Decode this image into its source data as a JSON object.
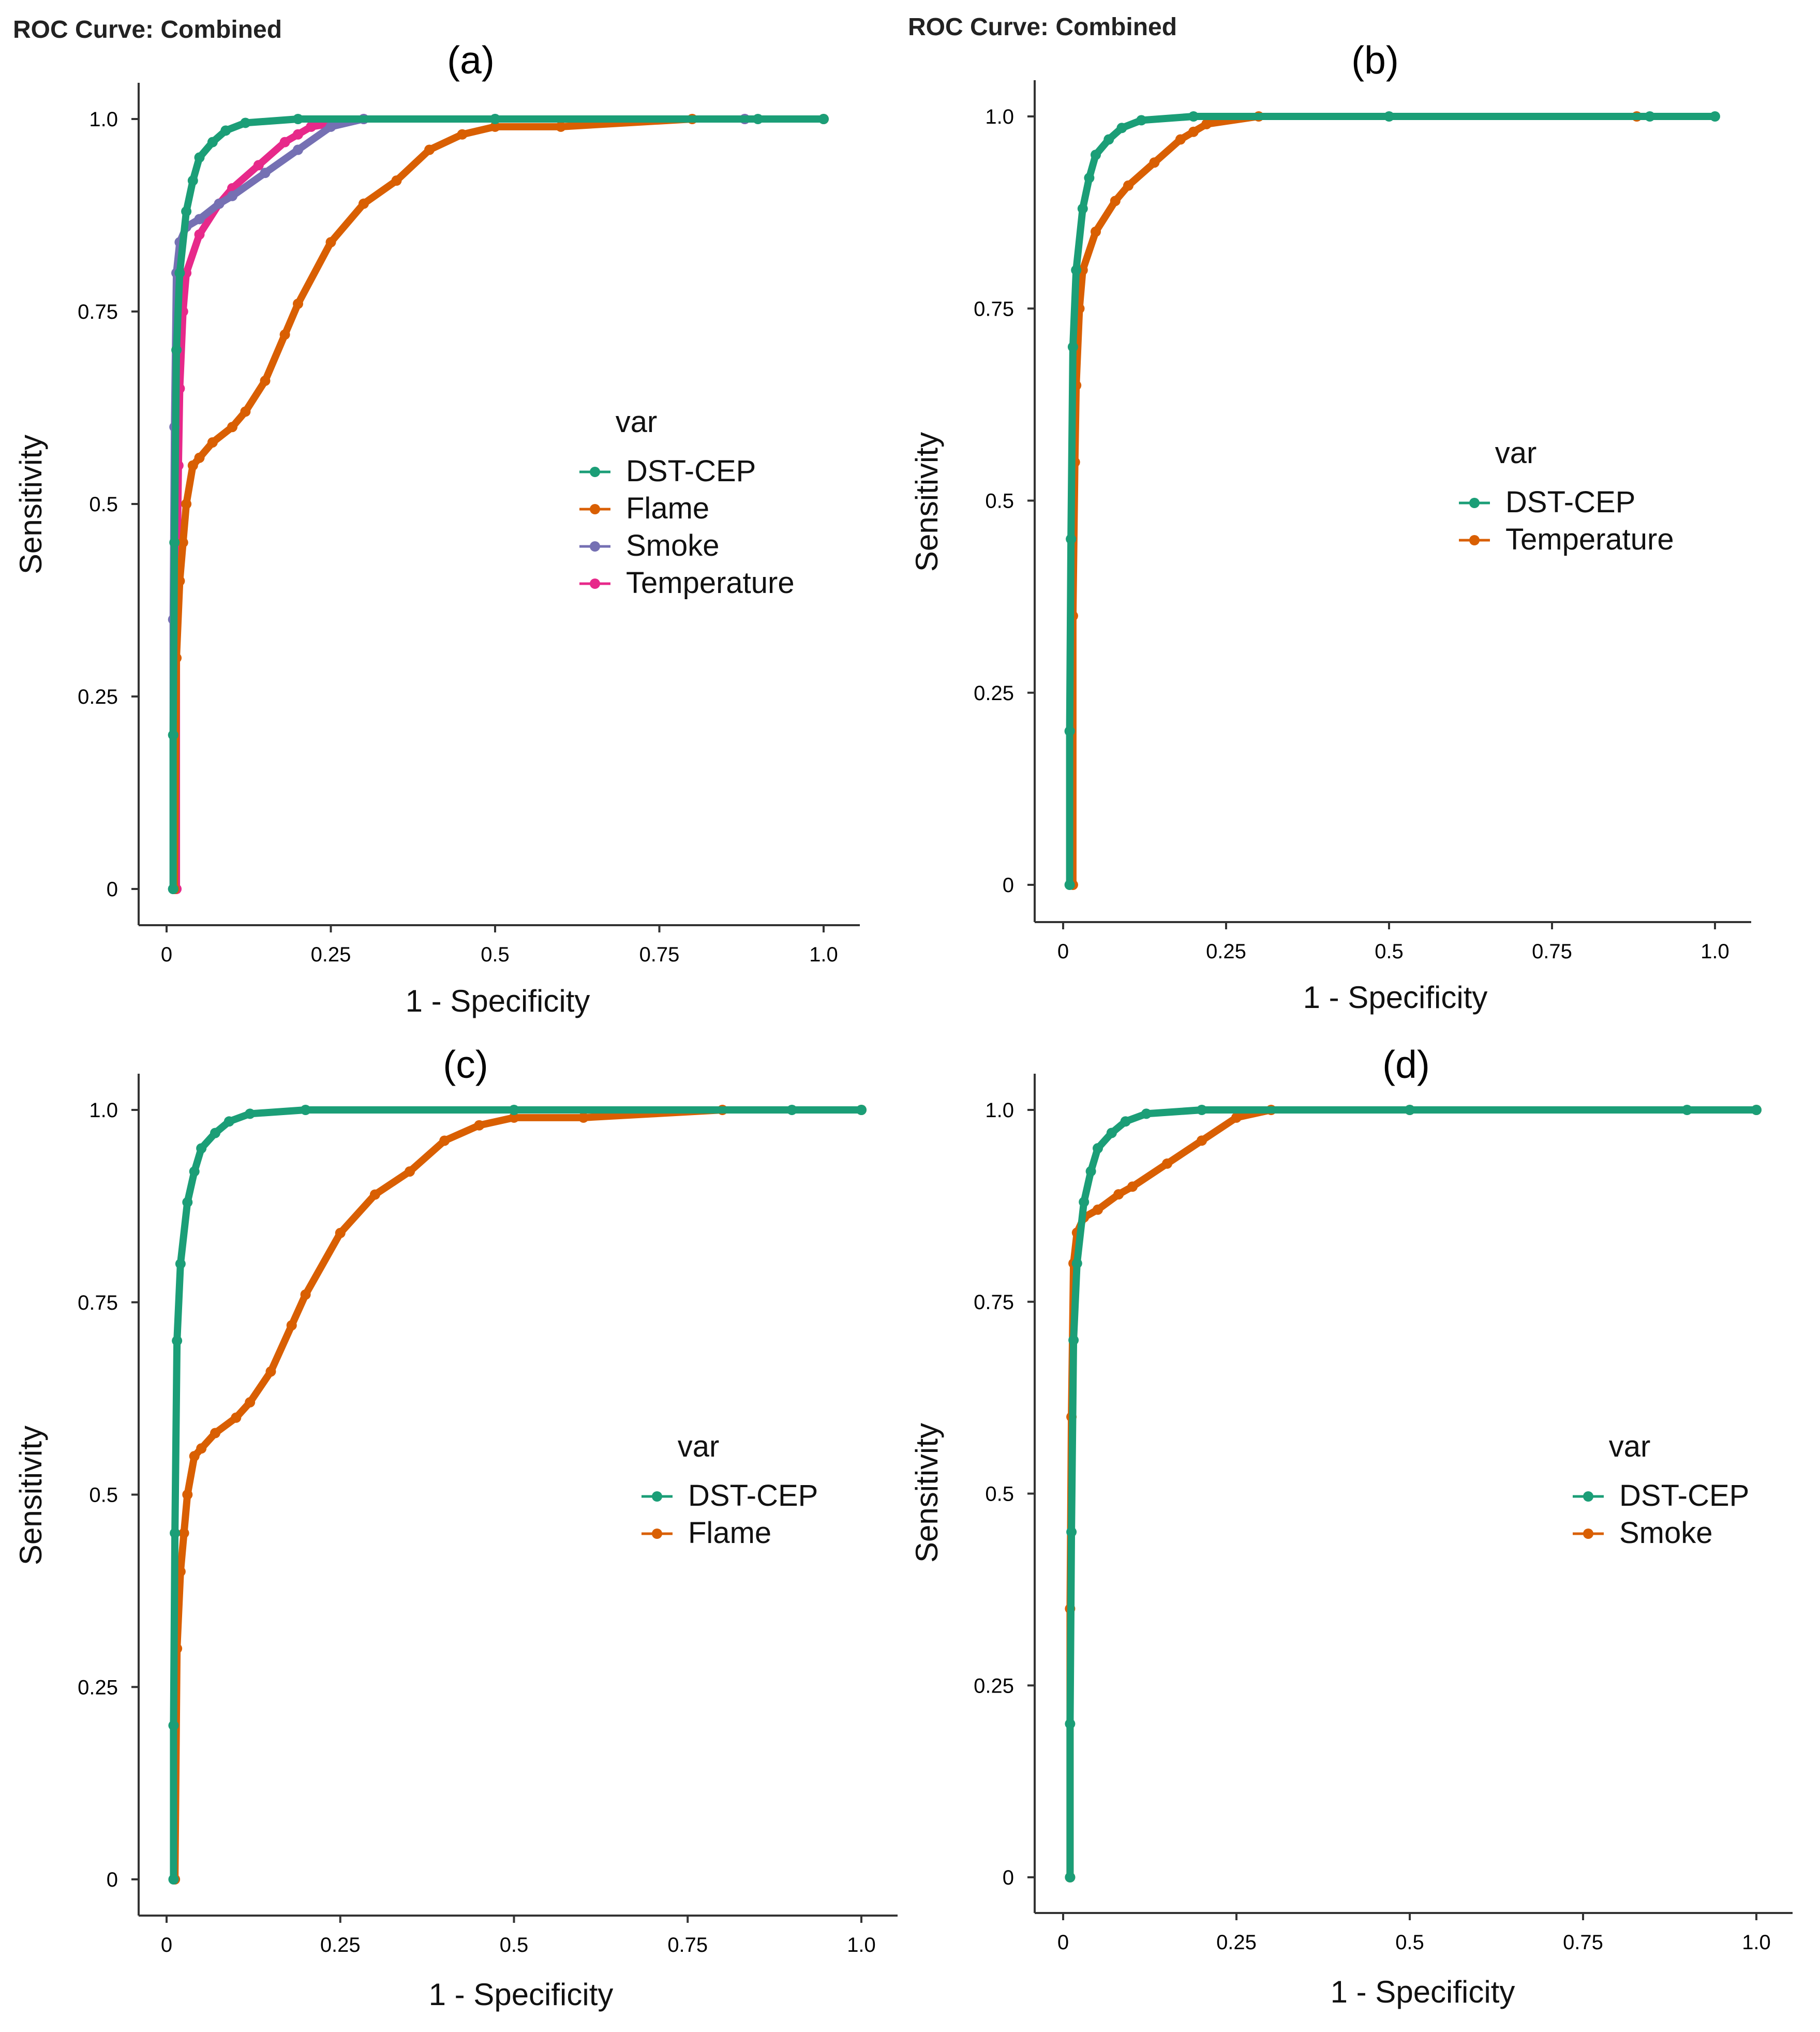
{
  "header": {
    "title_a": "ROC Curve: Combined",
    "title_b": "ROC Curve: Combined"
  },
  "colors": {
    "DST-CEP": "#1b9e77",
    "Flame": "#d95f02",
    "Smoke": "#7570b3",
    "Temperature": "#e7298a",
    "pair_second": "#d95f02"
  },
  "chart_data": [
    {
      "type": "line",
      "panel": "(a)",
      "xlabel": "1 - Specificity",
      "ylabel": "Sensitivity",
      "xlim": [
        0,
        1.0
      ],
      "ylim": [
        0,
        1.0
      ],
      "xticks": [
        "0",
        "0.25",
        "0.5",
        "0.75",
        "1.0"
      ],
      "yticks": [
        "0",
        "0.25",
        "0.5",
        "0.75",
        "1.0"
      ],
      "legend_title": "var",
      "legend_position": "right-center",
      "series": [
        {
          "name": "DST-CEP",
          "color": "#1b9e77",
          "x": [
            0.01,
            0.01,
            0.012,
            0.015,
            0.02,
            0.03,
            0.04,
            0.05,
            0.07,
            0.09,
            0.12,
            0.2,
            0.5,
            0.9,
            1.0
          ],
          "y": [
            0,
            0.2,
            0.45,
            0.7,
            0.8,
            0.88,
            0.92,
            0.95,
            0.97,
            0.985,
            0.995,
            1.0,
            1.0,
            1.0,
            1.0
          ]
        },
        {
          "name": "Flame",
          "color": "#d95f02",
          "x": [
            0.012,
            0.015,
            0.02,
            0.025,
            0.03,
            0.04,
            0.05,
            0.07,
            0.1,
            0.12,
            0.15,
            0.18,
            0.2,
            0.25,
            0.3,
            0.35,
            0.4,
            0.45,
            0.5,
            0.6,
            0.8,
            1.0
          ],
          "y": [
            0,
            0.3,
            0.4,
            0.45,
            0.5,
            0.55,
            0.56,
            0.58,
            0.6,
            0.62,
            0.66,
            0.72,
            0.76,
            0.84,
            0.89,
            0.92,
            0.96,
            0.98,
            0.99,
            0.99,
            1.0,
            1.0
          ]
        },
        {
          "name": "Smoke",
          "color": "#7570b3",
          "x": [
            0.01,
            0.01,
            0.012,
            0.015,
            0.02,
            0.03,
            0.05,
            0.08,
            0.1,
            0.15,
            0.2,
            0.25,
            0.3,
            0.5,
            0.88
          ],
          "y": [
            0,
            0.35,
            0.6,
            0.8,
            0.84,
            0.86,
            0.87,
            0.89,
            0.9,
            0.93,
            0.96,
            0.99,
            1.0,
            1.0,
            1.0
          ]
        },
        {
          "name": "Temperature",
          "color": "#e7298a",
          "x": [
            0.015,
            0.015,
            0.018,
            0.02,
            0.025,
            0.03,
            0.05,
            0.08,
            0.1,
            0.14,
            0.18,
            0.2,
            0.22,
            0.3,
            0.88
          ],
          "y": [
            0,
            0.35,
            0.55,
            0.65,
            0.75,
            0.8,
            0.85,
            0.89,
            0.91,
            0.94,
            0.97,
            0.98,
            0.99,
            1.0,
            1.0
          ]
        }
      ]
    },
    {
      "type": "line",
      "panel": "(b)",
      "xlabel": "1 - Specificity",
      "ylabel": "Sensitivity",
      "xlim": [
        0,
        1.0
      ],
      "ylim": [
        0,
        1.0
      ],
      "xticks": [
        "0",
        "0.25",
        "0.5",
        "0.75",
        "1.0"
      ],
      "yticks": [
        "0",
        "0.25",
        "0.5",
        "0.75",
        "1.0"
      ],
      "legend_title": "var",
      "legend_position": "right-center",
      "series": [
        {
          "name": "DST-CEP",
          "color": "#1b9e77",
          "x": [
            0.01,
            0.01,
            0.012,
            0.015,
            0.02,
            0.03,
            0.04,
            0.05,
            0.07,
            0.09,
            0.12,
            0.2,
            0.5,
            0.9,
            1.0
          ],
          "y": [
            0,
            0.2,
            0.45,
            0.7,
            0.8,
            0.88,
            0.92,
            0.95,
            0.97,
            0.985,
            0.995,
            1.0,
            1.0,
            1.0,
            1.0
          ]
        },
        {
          "name": "Temperature",
          "color": "#d95f02",
          "x": [
            0.015,
            0.015,
            0.018,
            0.02,
            0.025,
            0.03,
            0.05,
            0.08,
            0.1,
            0.14,
            0.18,
            0.2,
            0.22,
            0.3,
            0.88
          ],
          "y": [
            0,
            0.35,
            0.55,
            0.65,
            0.75,
            0.8,
            0.85,
            0.89,
            0.91,
            0.94,
            0.97,
            0.98,
            0.99,
            1.0,
            1.0
          ]
        }
      ]
    },
    {
      "type": "line",
      "panel": "(c)",
      "xlabel": "1 - Specificity",
      "ylabel": "Sensitivity",
      "xlim": [
        0,
        1.0
      ],
      "ylim": [
        0,
        1.0
      ],
      "xticks": [
        "0",
        "0.25",
        "0.5",
        "0.75",
        "1.0"
      ],
      "yticks": [
        "0",
        "0.25",
        "0.5",
        "0.75",
        "1.0"
      ],
      "legend_title": "var",
      "legend_position": "right-center",
      "series": [
        {
          "name": "DST-CEP",
          "color": "#1b9e77",
          "x": [
            0.01,
            0.01,
            0.012,
            0.015,
            0.02,
            0.03,
            0.04,
            0.05,
            0.07,
            0.09,
            0.12,
            0.2,
            0.5,
            0.9,
            1.0
          ],
          "y": [
            0,
            0.2,
            0.45,
            0.7,
            0.8,
            0.88,
            0.92,
            0.95,
            0.97,
            0.985,
            0.995,
            1.0,
            1.0,
            1.0,
            1.0
          ]
        },
        {
          "name": "Flame",
          "color": "#d95f02",
          "x": [
            0.012,
            0.015,
            0.02,
            0.025,
            0.03,
            0.04,
            0.05,
            0.07,
            0.1,
            0.12,
            0.15,
            0.18,
            0.2,
            0.25,
            0.3,
            0.35,
            0.4,
            0.45,
            0.5,
            0.6,
            0.8,
            1.0
          ],
          "y": [
            0,
            0.3,
            0.4,
            0.45,
            0.5,
            0.55,
            0.56,
            0.58,
            0.6,
            0.62,
            0.66,
            0.72,
            0.76,
            0.84,
            0.89,
            0.92,
            0.96,
            0.98,
            0.99,
            0.99,
            1.0,
            1.0
          ]
        }
      ]
    },
    {
      "type": "line",
      "panel": "(d)",
      "xlabel": "1 - Specificity",
      "ylabel": "Sensitivity",
      "xlim": [
        0,
        1.0
      ],
      "ylim": [
        0,
        1.0
      ],
      "xticks": [
        "0",
        "0.25",
        "0.5",
        "0.75",
        "1.0"
      ],
      "yticks": [
        "0",
        "0.25",
        "0.5",
        "0.75",
        "1.0"
      ],
      "legend_title": "var",
      "legend_position": "right-center",
      "series": [
        {
          "name": "DST-CEP",
          "color": "#1b9e77",
          "x": [
            0.01,
            0.01,
            0.012,
            0.015,
            0.02,
            0.03,
            0.04,
            0.05,
            0.07,
            0.09,
            0.12,
            0.2,
            0.5,
            0.9,
            1.0
          ],
          "y": [
            0,
            0.2,
            0.45,
            0.7,
            0.8,
            0.88,
            0.92,
            0.95,
            0.97,
            0.985,
            0.995,
            1.0,
            1.0,
            1.0,
            1.0
          ]
        },
        {
          "name": "Smoke",
          "color": "#d95f02",
          "x": [
            0.01,
            0.01,
            0.012,
            0.015,
            0.02,
            0.03,
            0.05,
            0.08,
            0.1,
            0.15,
            0.2,
            0.25,
            0.3,
            0.5,
            1.0
          ],
          "y": [
            0,
            0.35,
            0.6,
            0.8,
            0.84,
            0.86,
            0.87,
            0.89,
            0.9,
            0.93,
            0.96,
            0.99,
            1.0,
            1.0,
            1.0
          ]
        }
      ]
    }
  ]
}
